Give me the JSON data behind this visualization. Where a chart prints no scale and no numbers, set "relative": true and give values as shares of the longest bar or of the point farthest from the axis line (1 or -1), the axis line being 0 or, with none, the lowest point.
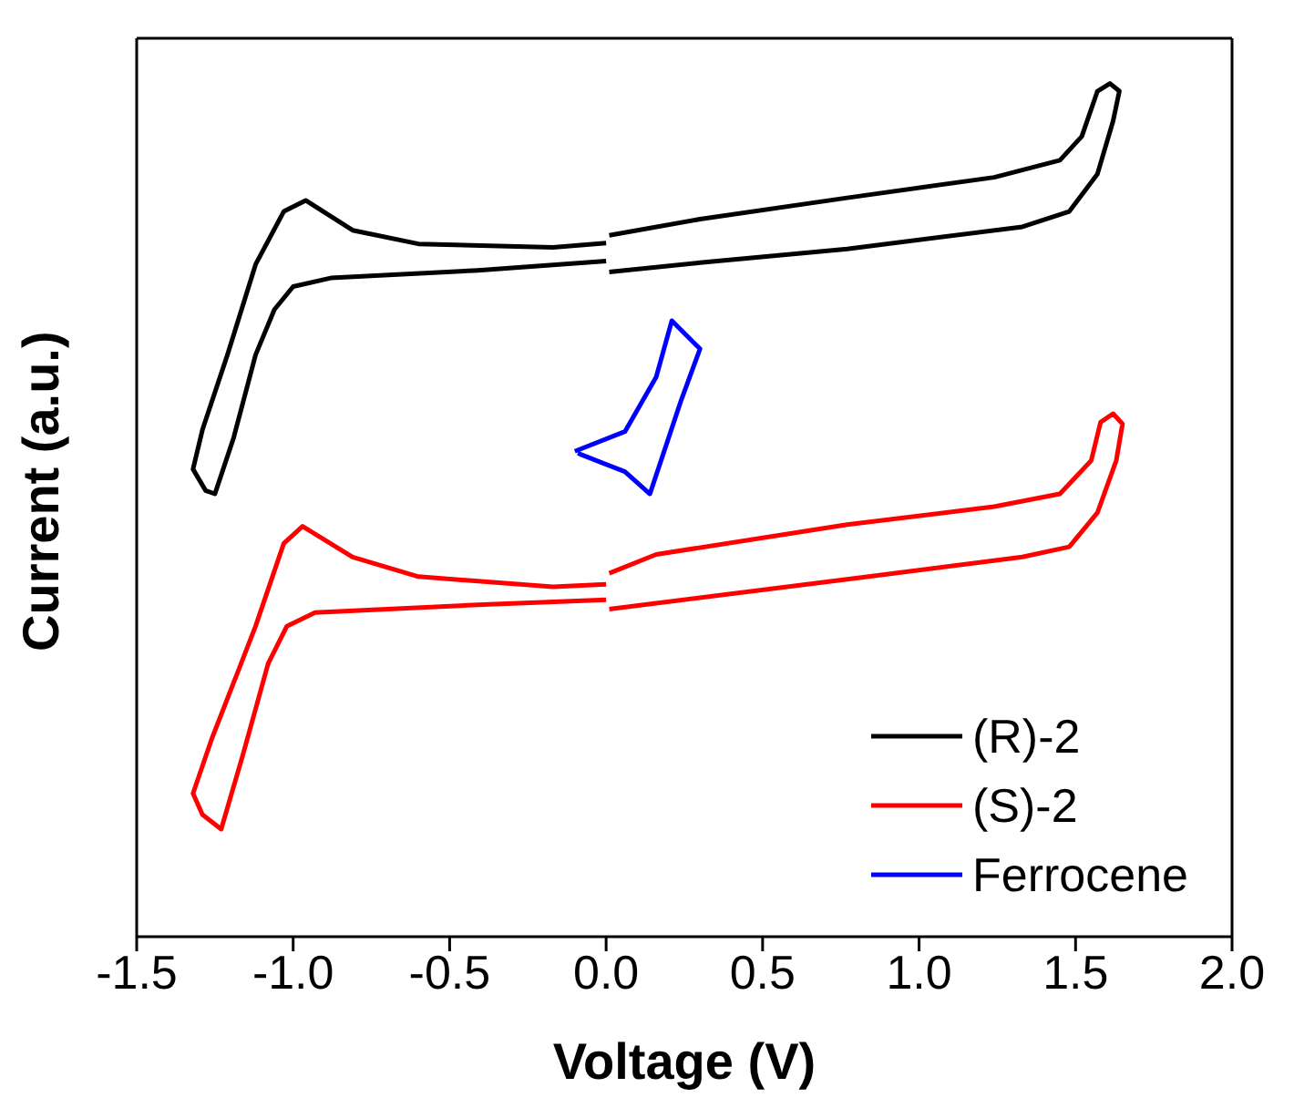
{
  "chart_data": {
    "type": "line",
    "relative": true,
    "xlabel": "Voltage (V)",
    "ylabel": "Current (a.u.)",
    "xlim": [
      -1.5,
      2.0
    ],
    "xticks": [
      {
        "value": -1.5,
        "label": "-1.5"
      },
      {
        "value": -1.0,
        "label": "-1.0"
      },
      {
        "value": -0.5,
        "label": "-0.5"
      },
      {
        "value": 0.0,
        "label": "0.0"
      },
      {
        "value": 0.5,
        "label": "0.5"
      },
      {
        "value": 1.0,
        "label": "1.0"
      },
      {
        "value": 1.5,
        "label": "1.5"
      },
      {
        "value": 2.0,
        "label": "2.0"
      }
    ],
    "legend": "bottom right",
    "marker": "none",
    "line_style": "solid",
    "series": [
      {
        "name": "(R)-2",
        "color": "#000000",
        "x": [
          0.01,
          0.3,
          0.77,
          1.24,
          1.45,
          1.52,
          1.57,
          1.61,
          1.64,
          1.62,
          1.57,
          1.48,
          1.33,
          0.77,
          0.3,
          0.01,
          null,
          0.0,
          -0.41,
          -0.88,
          -1.0,
          -1.06,
          -1.12,
          -1.19,
          -1.25,
          -1.28,
          -1.32,
          -1.29,
          -1.21,
          -1.12,
          -1.03,
          -0.96,
          -0.81,
          -0.6,
          -0.17,
          0.0
        ],
        "values": [
          0.822,
          0.841,
          0.866,
          0.89,
          0.91,
          0.938,
          0.991,
          1.0,
          0.991,
          0.956,
          0.894,
          0.85,
          0.832,
          0.806,
          0.79,
          0.779,
          null,
          0.792,
          0.781,
          0.772,
          0.762,
          0.735,
          0.682,
          0.585,
          0.519,
          0.523,
          0.548,
          0.594,
          0.682,
          0.788,
          0.85,
          0.863,
          0.828,
          0.812,
          0.808,
          0.813
        ]
      },
      {
        "name": "(S)-2",
        "color": "#ff0000",
        "x": [
          0.01,
          0.16,
          0.77,
          1.24,
          1.45,
          1.55,
          1.58,
          1.62,
          1.65,
          1.63,
          1.57,
          1.48,
          1.33,
          0.77,
          0.01,
          null,
          0.0,
          -0.41,
          -0.93,
          -1.02,
          -1.08,
          -1.16,
          -1.23,
          -1.29,
          -1.32,
          -1.26,
          -1.12,
          -1.03,
          -0.97,
          -0.81,
          -0.6,
          -0.17,
          0.0
        ],
        "values": [
          0.426,
          0.448,
          0.483,
          0.504,
          0.519,
          0.558,
          0.603,
          0.613,
          0.601,
          0.558,
          0.497,
          0.457,
          0.445,
          0.419,
          0.384,
          null,
          0.395,
          0.389,
          0.38,
          0.364,
          0.32,
          0.214,
          0.126,
          0.143,
          0.168,
          0.232,
          0.364,
          0.461,
          0.481,
          0.445,
          0.422,
          0.41,
          0.413
        ]
      },
      {
        "name": "Ferrocene",
        "color": "#0000ff",
        "x": [
          -0.1,
          0.06,
          0.16,
          0.21,
          0.3,
          0.24,
          0.14,
          0.06,
          -0.08,
          -0.09
        ],
        "values": [
          0.569,
          0.592,
          0.656,
          0.722,
          0.689,
          0.629,
          0.519,
          0.545,
          0.565,
          0.567
        ]
      }
    ]
  }
}
